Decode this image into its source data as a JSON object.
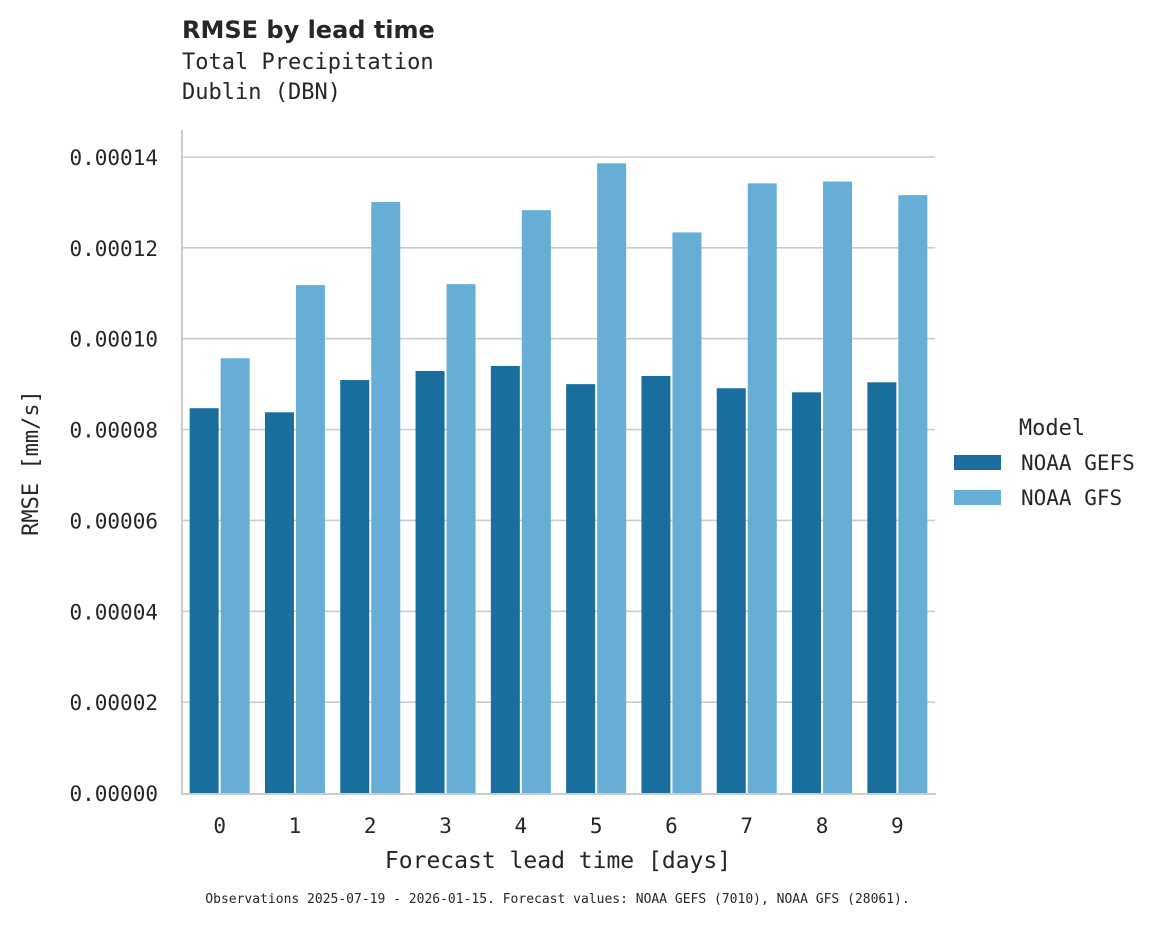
{
  "header": {
    "title": "RMSE by lead time",
    "subtitle_line1": "Total Precipitation",
    "subtitle_line2": "Dublin (DBN)"
  },
  "axes": {
    "xlabel": "Forecast lead time [days]",
    "ylabel": "RMSE [mm/s]",
    "yticks": [
      "0.00000",
      "0.00002",
      "0.00004",
      "0.00006",
      "0.00008",
      "0.00010",
      "0.00012",
      "0.00014"
    ],
    "xticks": [
      "0",
      "1",
      "2",
      "3",
      "4",
      "5",
      "6",
      "7",
      "8",
      "9"
    ]
  },
  "legend": {
    "title": "Model",
    "items": [
      {
        "label": "NOAA GEFS",
        "color": "#1a6e9e"
      },
      {
        "label": "NOAA GFS",
        "color": "#67aed7"
      }
    ]
  },
  "footnote": "Observations 2025-07-19 - 2026-01-15. Forecast values: NOAA GEFS (7010), NOAA GFS (28061).",
  "chart_data": {
    "type": "bar",
    "title": "RMSE by lead time",
    "subtitle": "Total Precipitation / Dublin (DBN)",
    "xlabel": "Forecast lead time [days]",
    "ylabel": "RMSE [mm/s]",
    "categories": [
      "0",
      "1",
      "2",
      "3",
      "4",
      "5",
      "6",
      "7",
      "8",
      "9"
    ],
    "series": [
      {
        "name": "NOAA GEFS",
        "color": "#1a6e9e",
        "values": [
          8.47e-05,
          8.38e-05,
          9.09e-05,
          9.29e-05,
          9.4e-05,
          9e-05,
          9.18e-05,
          8.91e-05,
          8.82e-05,
          9.04e-05
        ]
      },
      {
        "name": "NOAA GFS",
        "color": "#67aed7",
        "values": [
          9.57e-05,
          0.0001118,
          0.0001301,
          0.000112,
          0.0001283,
          0.0001386,
          0.0001234,
          0.0001342,
          0.0001346,
          0.0001316
        ]
      }
    ],
    "ylim": [
      0,
      0.000146
    ],
    "grid": "horizontal",
    "legend_position": "right",
    "legend_title": "Model"
  }
}
